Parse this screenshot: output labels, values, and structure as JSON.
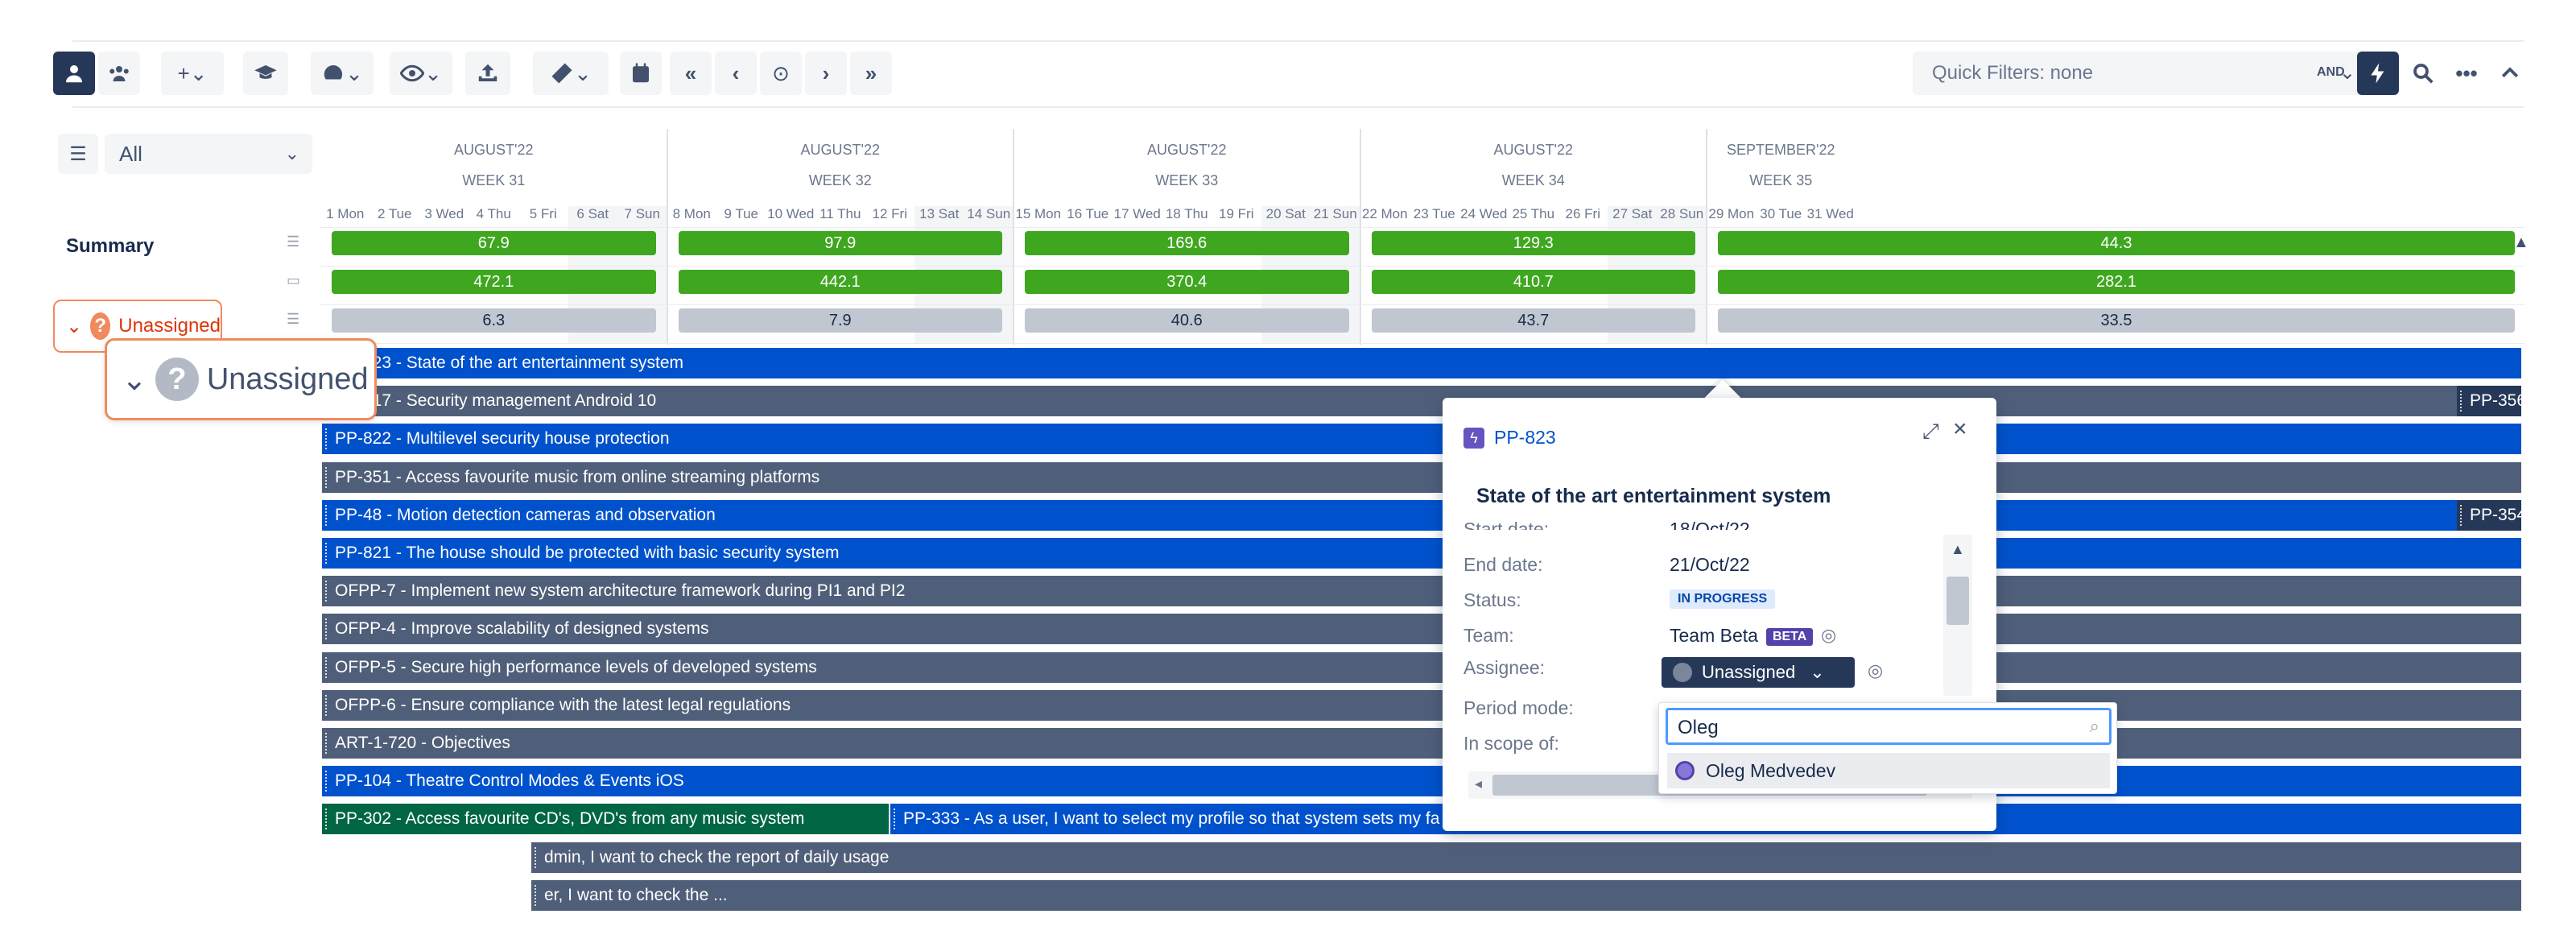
{
  "toolbar": {
    "icons": [
      "person-icon",
      "team-icon",
      "plus-icon",
      "graduation-cap-icon",
      "gauge-icon",
      "eye-icon",
      "upload-icon",
      "ruler-icon",
      "calendar-icon",
      "double-chevron-left-icon",
      "chevron-left-icon",
      "target-icon",
      "chevron-right-icon",
      "double-chevron-right-icon"
    ],
    "quick_filters": "Quick Filters: none",
    "and_label": "AND"
  },
  "filter": {
    "value": "All"
  },
  "timeline": {
    "weeks": [
      {
        "month": "AUGUST'22",
        "week": "WEEK 31",
        "days": [
          "1 Mon",
          "2 Tue",
          "3 Wed",
          "4 Thu",
          "5 Fri",
          "6 Sat",
          "7 Sun"
        ]
      },
      {
        "month": "AUGUST'22",
        "week": "WEEK 32",
        "days": [
          "8 Mon",
          "9 Tue",
          "10 Wed",
          "11 Thu",
          "12 Fri",
          "13 Sat",
          "14 Sun"
        ]
      },
      {
        "month": "AUGUST'22",
        "week": "WEEK 33",
        "days": [
          "15 Mon",
          "16 Tue",
          "17 Wed",
          "18 Thu",
          "19 Fri",
          "20 Sat",
          "21 Sun"
        ]
      },
      {
        "month": "AUGUST'22",
        "week": "WEEK 34",
        "days": [
          "22 Mon",
          "23 Tue",
          "24 Wed",
          "25 Thu",
          "26 Fri",
          "27 Sat",
          "28 Sun"
        ]
      },
      {
        "month": "SEPTEMBER'22",
        "week": "WEEK 35",
        "days": [
          "29 Mon",
          "30 Tue",
          "31 Wed"
        ]
      }
    ]
  },
  "summary": {
    "label": "Summary",
    "rows": [
      {
        "color": "green",
        "values": [
          "67.9",
          "97.9",
          "169.6",
          "129.3",
          "44.3"
        ]
      },
      {
        "color": "green",
        "values": [
          "472.1",
          "442.1",
          "370.4",
          "410.7",
          "282.1"
        ]
      },
      {
        "color": "grey",
        "values": [
          "6.3",
          "7.9",
          "40.6",
          "43.7",
          "33.5"
        ]
      }
    ]
  },
  "unassigned": {
    "label": "Unassigned",
    "callout_label": "Unassigned",
    "icon_glyph": "?",
    "chevron": "⌄"
  },
  "issues": [
    {
      "label": "PP-823 - State of the art entertainment system",
      "color": "blue"
    },
    {
      "label": "PP-817 - Security management Android 10",
      "color": "slate",
      "trail": "PP-356"
    },
    {
      "label": "PP-822 - Multilevel security house protection",
      "color": "blue"
    },
    {
      "label": "PP-351 - Access favourite music from online streaming platforms",
      "color": "slate"
    },
    {
      "label": "PP-48 - Motion detection cameras and observation",
      "color": "blue",
      "trail": "PP-354"
    },
    {
      "label": "PP-821 - The house should be protected with basic security system",
      "color": "blue"
    },
    {
      "label": "OFPP-7 - Implement new system architecture framework during PI1 and PI2",
      "color": "slate"
    },
    {
      "label": "OFPP-4 - Improve scalability of designed systems",
      "color": "slate"
    },
    {
      "label": "OFPP-5 - Secure high performance levels of developed systems",
      "color": "slate"
    },
    {
      "label": "OFPP-6 - Ensure compliance with the latest legal regulations",
      "color": "slate"
    },
    {
      "label": "ART-1-720 - Objectives",
      "color": "slate"
    },
    {
      "label": "PP-104 - Theatre Control Modes & Events iOS",
      "color": "blue"
    },
    {
      "label": "PP-302 - Access favourite CD's, DVD's from any music system",
      "color": "green",
      "second": "PP-333 - As a user, I want to select my profile so that system sets my fa"
    },
    {
      "label": "dmin, I want to check the report of daily usage",
      "color": "slate"
    },
    {
      "label": "er, I want to check the ...",
      "color": "slate"
    }
  ],
  "popup": {
    "key": "PP-823",
    "title": "State of the art entertainment system",
    "clipped_label": "Start date:",
    "clipped_value": "18/Oct/22",
    "fields": {
      "end_date_label": "End date:",
      "end_date": "21/Oct/22",
      "status_label": "Status:",
      "status": "IN PROGRESS",
      "team_label": "Team:",
      "team": "Team Beta",
      "team_badge": "BETA",
      "assignee_label": "Assignee:",
      "assignee": "Unassigned",
      "period_label": "Period mode:",
      "scope_label": "In scope of:"
    }
  },
  "assignee_search": {
    "query": "Oleg",
    "results": [
      "Oleg Medvedev"
    ]
  }
}
